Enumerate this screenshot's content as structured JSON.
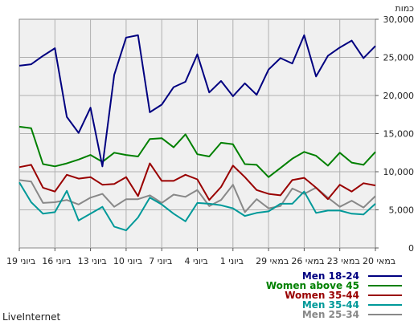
{
  "brand": "LiveInternet",
  "chart_data": {
    "type": "line",
    "ylabel": "כמות",
    "ylim": [
      0,
      30000
    ],
    "yticks": [
      "0",
      "5,000",
      "10,000",
      "15,000",
      "20,000",
      "25,000",
      "30,000"
    ],
    "x_tick_labels": [
      "19 ביוני",
      "16 ביוני",
      "13 ביוני",
      "10 ביוני",
      "7 ביוני",
      "4 ביוני",
      "1 ביוני",
      "29 במאי",
      "26 במאי",
      "23 במאי",
      "20 במאי"
    ],
    "grid": true,
    "series": [
      {
        "name": "Men 18-24",
        "color": "#000080",
        "values": [
          23900,
          24100,
          25200,
          26200,
          17200,
          15100,
          18400,
          10700,
          22700,
          27600,
          27900,
          17800,
          18800,
          21100,
          21800,
          25400,
          20400,
          21900,
          19900,
          21600,
          20100,
          23400,
          24900,
          24200,
          27900,
          22500,
          25200,
          26300,
          27200,
          24900,
          26500
        ]
      },
      {
        "name": "Women above 45",
        "color": "#008000",
        "values": [
          15900,
          15700,
          11000,
          10700,
          11100,
          11600,
          12200,
          11300,
          12500,
          12200,
          12000,
          14300,
          14400,
          13200,
          14900,
          12300,
          12000,
          13800,
          13600,
          11000,
          10900,
          9300,
          10500,
          11700,
          12600,
          12100,
          10800,
          12500,
          11200,
          10900,
          12600
        ]
      },
      {
        "name": "Women 35-44",
        "color": "#990000",
        "values": [
          10600,
          10900,
          7900,
          7400,
          9600,
          9100,
          9300,
          8300,
          8400,
          9300,
          6800,
          11100,
          8800,
          8800,
          9600,
          9000,
          6300,
          8000,
          10800,
          9300,
          7600,
          7100,
          6900,
          8900,
          9200,
          7900,
          6400,
          8300,
          7400,
          8500,
          8200
        ]
      },
      {
        "name": "Men 35-44",
        "color": "#009999",
        "values": [
          8600,
          6000,
          4500,
          4700,
          7500,
          3600,
          4500,
          5400,
          2800,
          2300,
          4000,
          6600,
          5700,
          4500,
          3500,
          5900,
          5800,
          5600,
          5200,
          4200,
          4600,
          4800,
          5800,
          5800,
          7400,
          4600,
          4900,
          4900,
          4500,
          4400,
          5800
        ]
      },
      {
        "name": "Men 25-34",
        "color": "#888888",
        "values": [
          8900,
          8700,
          5900,
          6000,
          6300,
          5700,
          6600,
          7100,
          5400,
          6400,
          6400,
          6900,
          5900,
          7000,
          6700,
          7600,
          5500,
          6300,
          8300,
          4700,
          6400,
          5200,
          5500,
          7800,
          7100,
          7900,
          6600,
          5400,
          6200,
          5300,
          6800
        ]
      }
    ]
  }
}
